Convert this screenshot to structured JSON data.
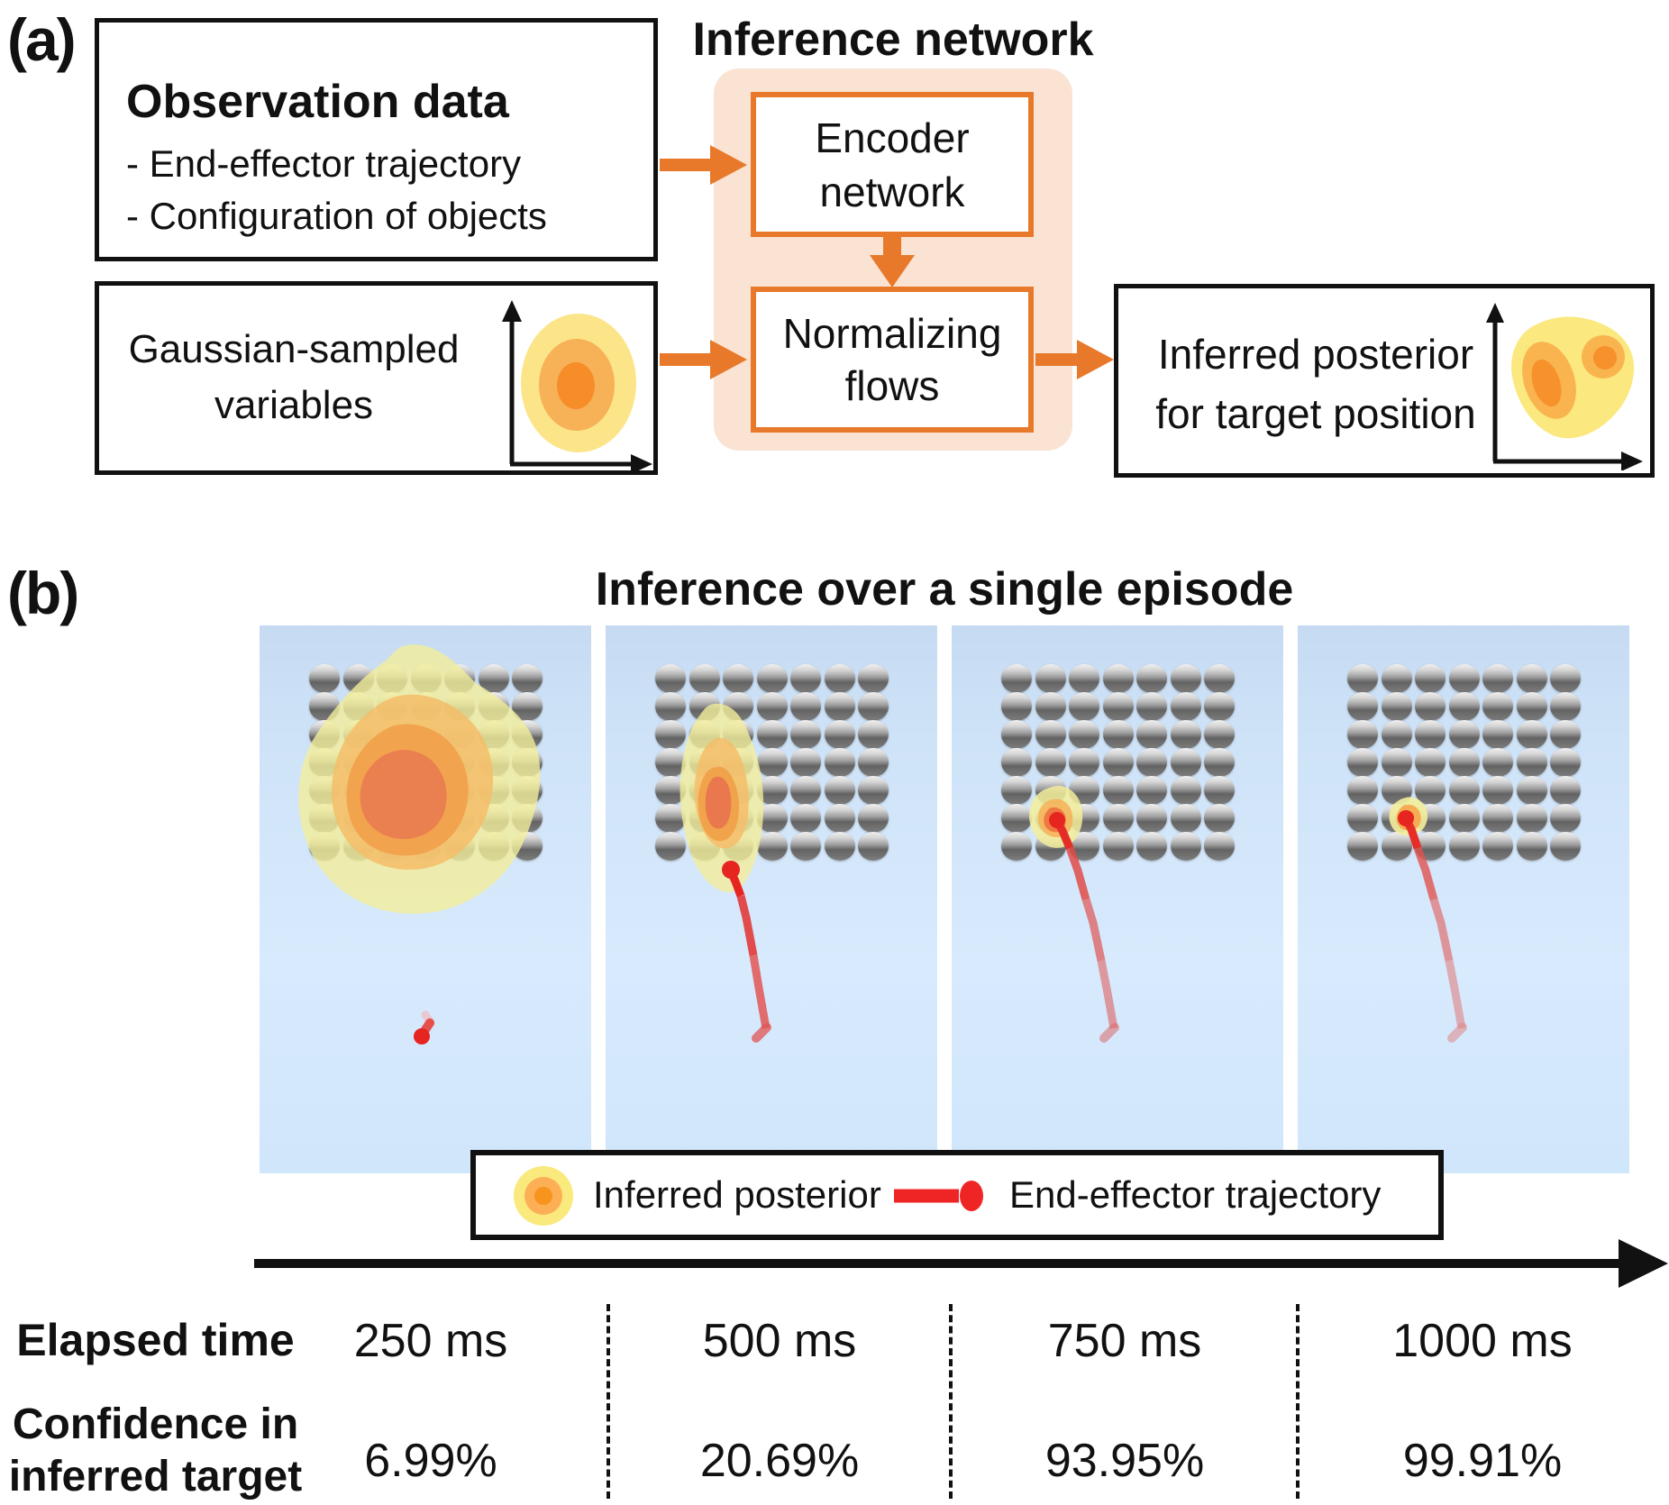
{
  "panel_a": {
    "label": "(a)",
    "observation": {
      "title": "Observation data",
      "item1": "- End-effector trajectory",
      "item2": "- Configuration of objects"
    },
    "gaussian": {
      "line1": "Gaussian-sampled",
      "line2": "variables"
    },
    "network_title": "Inference network",
    "encoder": {
      "line1": "Encoder",
      "line2": "network"
    },
    "flows": {
      "line1": "Normalizing",
      "line2": "flows"
    },
    "result": {
      "line1": "Inferred posterior",
      "line2": "for target position"
    }
  },
  "panel_b": {
    "label": "(b)",
    "title": "Inference over a single episode",
    "grid": {
      "rows": 7,
      "cols": 7
    },
    "legend": {
      "posterior": "Inferred posterior",
      "trajectory": "End-effector trajectory"
    },
    "axis": {
      "elapsed_label": "Elapsed time",
      "confidence_label1": "Confidence in",
      "confidence_label2": "inferred target"
    },
    "frames": [
      {
        "time": "250 ms",
        "confidence": "6.99%"
      },
      {
        "time": "500 ms",
        "confidence": "20.69%"
      },
      {
        "time": "750 ms",
        "confidence": "93.95%"
      },
      {
        "time": "1000 ms",
        "confidence": "99.91%"
      }
    ]
  },
  "colors": {
    "accent_orange": "#e8792b",
    "panel_pink": "#fae3d2",
    "panel_blue_top": "#c6dbf2",
    "panel_blue_bottom": "#d8eafd",
    "posterior_yellow": "#f3ee9b",
    "posterior_orange": "#f2a049",
    "posterior_core": "#e97b51",
    "trajectory_red": "#e62521"
  }
}
